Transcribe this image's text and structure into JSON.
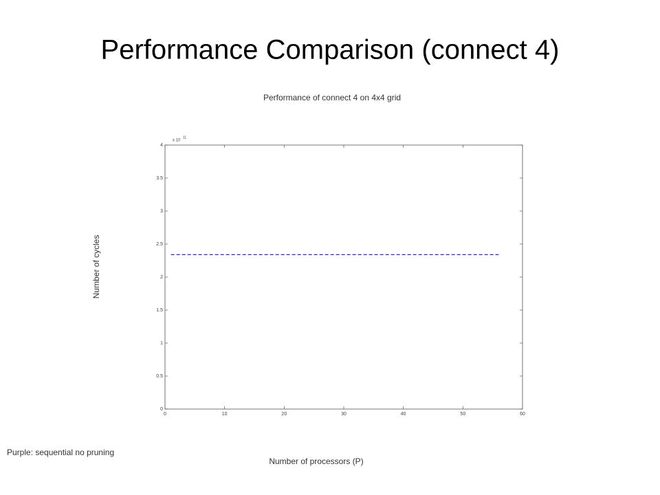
{
  "slide_title": "Performance Comparison (connect 4)",
  "note": "Purple: sequential no pruning",
  "chart_data": {
    "type": "line",
    "title": "Performance of connect 4 on 4x4 grid",
    "x_label": "Number of processors (P)",
    "y_label": "Number of cycles",
    "y_multiplier": {
      "base": "x 10",
      "exponent": "11"
    },
    "x": [
      1,
      56
    ],
    "series": [
      {
        "color": "#2e2e8f",
        "values": [
          2.34,
          2.34
        ],
        "dashed": true
      }
    ],
    "xlim": [
      0,
      60
    ],
    "xticks": [
      0,
      10,
      20,
      30,
      40,
      50,
      60
    ],
    "ylim": [
      0,
      4
    ],
    "yticks": [
      0,
      0.5,
      1,
      1.5,
      2,
      2.5,
      3,
      3.5,
      4
    ],
    "grid": false
  }
}
